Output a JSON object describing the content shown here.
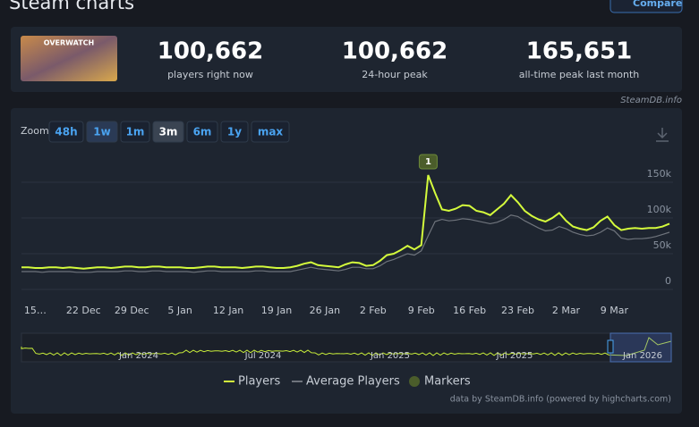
{
  "header": {
    "title": "Steam charts",
    "compare": "Compare",
    "game_logo": "OVERWATCH",
    "stats": [
      {
        "value": "100,662",
        "label": "players right now"
      },
      {
        "value": "100,662",
        "label": "24-hour peak"
      },
      {
        "value": "165,651",
        "label": "all-time peak last month"
      }
    ],
    "credit": "SteamDB.info"
  },
  "zoom": {
    "label": "Zoom",
    "buttons": [
      "48h",
      "1w",
      "1m",
      "3m",
      "6m",
      "1y",
      "max"
    ]
  },
  "chart_data": {
    "type": "line",
    "categories": [
      null,
      null,
      "15…",
      null,
      null,
      null,
      null,
      null,
      null,
      "22 Dec",
      null,
      null,
      null,
      null,
      null,
      null,
      "29 Dec",
      null,
      null,
      null,
      null,
      null,
      null,
      "5 Jan",
      null,
      null,
      null,
      null,
      null,
      null,
      "12 Jan",
      null,
      null,
      null,
      null,
      null,
      null,
      "19 Jan",
      null,
      null,
      null,
      null,
      null,
      null,
      "26 Jan",
      null,
      null,
      null,
      null,
      null,
      null,
      "2 Feb",
      null,
      null,
      null,
      null,
      null,
      null,
      "9 Feb",
      null,
      null,
      null,
      null,
      null,
      null,
      "16 Feb",
      null,
      null,
      null,
      null,
      null,
      null,
      "23 Feb",
      null,
      null,
      null,
      null,
      null,
      null,
      "2 Mar",
      null,
      null,
      null,
      null,
      null,
      null,
      "9 Mar",
      null,
      null,
      null,
      null,
      null,
      null,
      null,
      null
    ],
    "series": [
      {
        "name": "Players",
        "color": "#d4fb3c",
        "values": [
          31000,
          31000,
          30000,
          30000,
          31000,
          31000,
          30000,
          31000,
          30000,
          29000,
          30000,
          31000,
          31000,
          30000,
          31000,
          32000,
          32000,
          31000,
          31000,
          32000,
          32000,
          31000,
          31000,
          31000,
          30000,
          30000,
          31000,
          32000,
          32000,
          31000,
          31000,
          31000,
          30000,
          31000,
          32000,
          32000,
          31000,
          30000,
          30000,
          31000,
          33000,
          36000,
          38000,
          34000,
          33000,
          32000,
          31000,
          35000,
          38000,
          37000,
          33000,
          34000,
          40000,
          48000,
          50000,
          55000,
          61000,
          56000,
          62000,
          160000,
          135000,
          112000,
          110000,
          113000,
          118000,
          117000,
          110000,
          108000,
          104000,
          112000,
          120000,
          132000,
          122000,
          110000,
          103000,
          98000,
          95000,
          100000,
          107000,
          96000,
          88000,
          85000,
          83000,
          87000,
          96000,
          102000,
          90000,
          83000,
          85000,
          86000,
          85000,
          86000,
          86000,
          88000,
          92000
        ]
      },
      {
        "name": "Average Players",
        "color": "#6f747c",
        "values": [
          25000,
          25000,
          25000,
          24000,
          25000,
          25000,
          25000,
          25000,
          24000,
          24000,
          24000,
          25000,
          25000,
          25000,
          25000,
          26000,
          26000,
          25000,
          25000,
          26000,
          26000,
          25000,
          25000,
          25000,
          25000,
          24000,
          25000,
          26000,
          26000,
          25000,
          25000,
          25000,
          25000,
          25000,
          26000,
          26000,
          25000,
          25000,
          25000,
          25000,
          27000,
          29000,
          31000,
          29000,
          28000,
          27000,
          26000,
          28000,
          31000,
          31000,
          29000,
          29000,
          33000,
          39000,
          42000,
          46000,
          50000,
          48000,
          54000,
          75000,
          95000,
          98000,
          96000,
          97000,
          99000,
          98000,
          96000,
          94000,
          92000,
          94000,
          98000,
          104000,
          102000,
          96000,
          91000,
          86000,
          82000,
          83000,
          88000,
          85000,
          80000,
          77000,
          75000,
          76000,
          80000,
          86000,
          82000,
          72000,
          70000,
          71000,
          71000,
          72000,
          74000,
          77000,
          80000
        ]
      }
    ],
    "markers_name": "Markers",
    "markers": [
      "1"
    ],
    "ylim": [
      0,
      200000
    ],
    "yticks": [
      0,
      {
        "value": 50000,
        "label": "50k"
      },
      {
        "value": 100000,
        "label": "100k"
      },
      {
        "value": 150000,
        "label": "150k"
      }
    ],
    "grid": true,
    "navigator_labels": [
      "Jan 2024",
      "Jul 2024",
      "Jan 2025",
      "Jul 2025",
      "Jan 2026"
    ],
    "footer": "data by SteamDB.info (powered by highcharts.com)"
  }
}
